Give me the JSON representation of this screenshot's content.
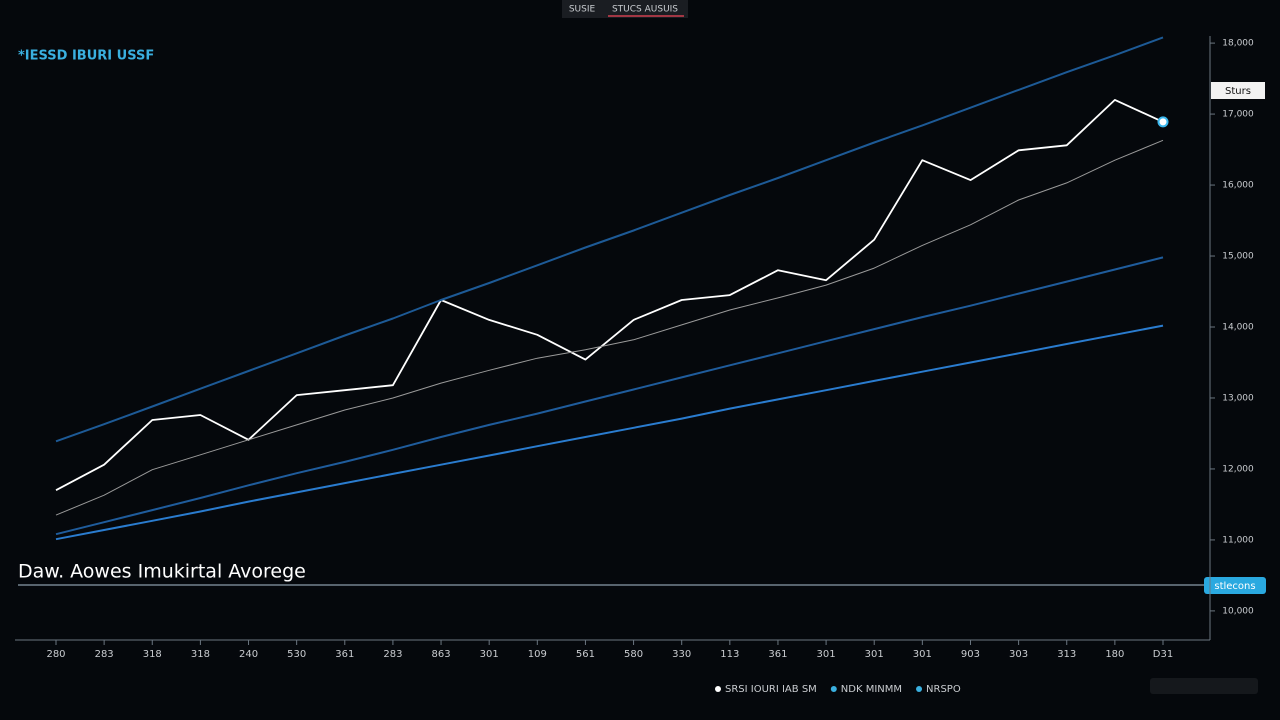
{
  "chart_data": {
    "type": "line",
    "title": "Daw. Aowes Imukirtal Avorege",
    "subtitle": "*IESSD IBURI USSF",
    "tabs": [
      "SUSIE",
      "STUCS AUSUIS"
    ],
    "badge": "Sturs",
    "price_label": "stlecons",
    "categories": [
      "280",
      "283",
      "318",
      "318",
      "240",
      "530",
      "361",
      "283",
      "863",
      "301",
      "109",
      "561",
      "580",
      "330",
      "113",
      "361",
      "301",
      "301",
      "301",
      "903",
      "303",
      "313",
      "180",
      "D31"
    ],
    "ylim": [
      9590,
      18100
    ],
    "yticks": [
      {
        "value": 10000,
        "label": "10,000"
      },
      {
        "value": 11000,
        "label": "11,000"
      },
      {
        "value": 12000,
        "label": "12,000"
      },
      {
        "value": 13000,
        "label": "13,000"
      },
      {
        "value": 14000,
        "label": "14,000"
      },
      {
        "value": 15000,
        "label": "15,000"
      },
      {
        "value": 16000,
        "label": "16,000"
      },
      {
        "value": 17000,
        "label": "17,000"
      },
      {
        "value": 18000,
        "label": "18,000"
      }
    ],
    "grid": false,
    "series": [
      {
        "name": "SRSI IOURI IAB SM",
        "color": "#ffffff",
        "values": [
          11700,
          12060,
          12690,
          12760,
          12410,
          13040,
          13110,
          13180,
          14380,
          14100,
          13890,
          13540,
          14100,
          14380,
          14450,
          14800,
          14660,
          15230,
          16350,
          16070,
          16490,
          16560,
          17200,
          16890
        ]
      },
      {
        "name": "NDK MINMM",
        "color": "#9a9a9a",
        "values": [
          11350,
          11630,
          11990,
          12200,
          12410,
          12620,
          12830,
          13000,
          13210,
          13390,
          13560,
          13680,
          13820,
          14030,
          14240,
          14410,
          14590,
          14830,
          15150,
          15440,
          15790,
          16030,
          16350,
          16630
        ]
      },
      {
        "name": "NRSPO",
        "color": "#1d5a96",
        "values": [
          12390,
          12630,
          12880,
          13130,
          13380,
          13630,
          13880,
          14120,
          14380,
          14620,
          14870,
          15120,
          15360,
          15610,
          15860,
          16100,
          16350,
          16600,
          16840,
          17090,
          17340,
          17590,
          17830,
          18080
        ]
      },
      {
        "color": "#1f5c9c",
        "values": [
          11080,
          11250,
          11420,
          11590,
          11770,
          11940,
          12100,
          12270,
          12450,
          12620,
          12780,
          12950,
          13120,
          13290,
          13460,
          13630,
          13800,
          13970,
          14140,
          14300,
          14470,
          14640,
          14810,
          14980
        ]
      },
      {
        "color": "#2a7ccf",
        "values": [
          11010,
          11140,
          11270,
          11400,
          11540,
          11670,
          11800,
          11930,
          12060,
          12190,
          12320,
          12450,
          12580,
          12710,
          12850,
          12980,
          13110,
          13240,
          13370,
          13500,
          13630,
          13760,
          13890,
          14020
        ]
      }
    ]
  }
}
